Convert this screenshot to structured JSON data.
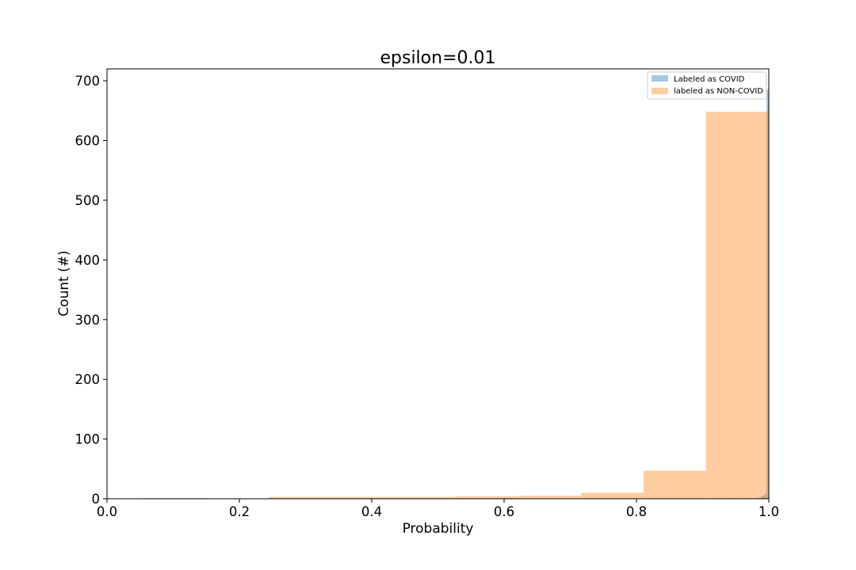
{
  "chart_data": {
    "type": "bar",
    "title": "epsilon=0.01",
    "xlabel": "Probability",
    "ylabel": "Count (#)",
    "xlim": [
      0.0,
      1.0
    ],
    "ylim": [
      0,
      720
    ],
    "xticks": [
      "0.0",
      "0.2",
      "0.4",
      "0.6",
      "0.8",
      "1.0"
    ],
    "yticks": [
      "0",
      "100",
      "200",
      "300",
      "400",
      "500",
      "600",
      "700"
    ],
    "grid": false,
    "legend_position": "top-right",
    "series": [
      {
        "name": "Labeled as COVID",
        "color": "#1f77b4",
        "opacity": 0.4,
        "bins": [
          {
            "x0": 0.9432,
            "x1": 0.9497,
            "count": 1
          },
          {
            "x0": 0.9497,
            "x1": 0.9562,
            "count": 0
          },
          {
            "x0": 0.9562,
            "x1": 0.9627,
            "count": 0
          },
          {
            "x0": 0.9627,
            "x1": 0.9692,
            "count": 1
          },
          {
            "x0": 0.9692,
            "x1": 0.9757,
            "count": 0
          },
          {
            "x0": 0.9757,
            "x1": 0.9822,
            "count": 1
          },
          {
            "x0": 0.9822,
            "x1": 0.9887,
            "count": 2
          },
          {
            "x0": 0.9887,
            "x1": 0.9935,
            "count": 5
          },
          {
            "x0": 0.9935,
            "x1": 0.9965,
            "count": 8
          },
          {
            "x0": 0.9965,
            "x1": 1.0,
            "count": 686
          }
        ]
      },
      {
        "name": "labeled as NON-COVID",
        "color": "#ff7f0e",
        "opacity": 0.4,
        "bins": [
          {
            "x0": 0.0555,
            "x1": 0.1499,
            "count": 1
          },
          {
            "x0": 0.1499,
            "x1": 0.2443,
            "count": 0
          },
          {
            "x0": 0.2443,
            "x1": 0.3387,
            "count": 3
          },
          {
            "x0": 0.3387,
            "x1": 0.4331,
            "count": 3
          },
          {
            "x0": 0.4331,
            "x1": 0.5275,
            "count": 3
          },
          {
            "x0": 0.5275,
            "x1": 0.6219,
            "count": 4
          },
          {
            "x0": 0.6219,
            "x1": 0.7163,
            "count": 5
          },
          {
            "x0": 0.7163,
            "x1": 0.8107,
            "count": 10
          },
          {
            "x0": 0.8107,
            "x1": 0.9051,
            "count": 47
          },
          {
            "x0": 0.9051,
            "x1": 0.9995,
            "count": 648
          }
        ]
      }
    ]
  }
}
